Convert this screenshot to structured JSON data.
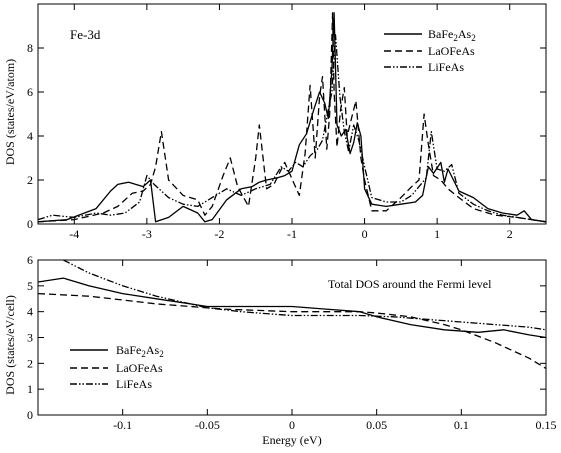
{
  "chart_data": [
    {
      "type": "line",
      "annotation": "Fe-3d",
      "xlabel": "",
      "ylabel": "DOS (states/eV/atom)",
      "xlim": [
        -4.5,
        2.5
      ],
      "ylim": [
        0,
        10
      ],
      "xticks": [
        -4,
        -3,
        -2,
        -1,
        0,
        1,
        2
      ],
      "xtick_labels": [
        "-4",
        "-3",
        "-2",
        "-1",
        "0",
        "1",
        "2"
      ],
      "yticks": [
        0,
        2,
        4,
        6,
        8
      ],
      "ytick_labels": [
        "0",
        "2",
        "4",
        "6",
        "8"
      ],
      "legend": {
        "position": "top-right"
      },
      "grid": false,
      "series": [
        {
          "name": "BaFe2As2",
          "style": "solid",
          "x": [
            -4.5,
            -4.1,
            -3.7,
            -3.5,
            -3.4,
            -3.25,
            -3.05,
            -2.95,
            -2.88,
            -2.7,
            -2.5,
            -2.3,
            -2.2,
            -2.1,
            -1.9,
            -1.7,
            -1.55,
            -1.45,
            -1.35,
            -1.2,
            -1.1,
            -1.0,
            -0.9,
            -0.8,
            -0.7,
            -0.62,
            -0.55,
            -0.5,
            -0.45,
            -0.42,
            -0.38,
            -0.32,
            -0.26,
            -0.2,
            -0.15,
            -0.1,
            -0.05,
            0.0,
            0.1,
            0.3,
            0.5,
            0.7,
            0.8,
            0.88,
            0.95,
            1.05,
            1.1,
            1.15,
            1.3,
            1.5,
            1.7,
            1.9,
            2.1,
            2.2,
            2.3,
            2.5
          ],
          "y": [
            0.1,
            0.2,
            0.7,
            1.5,
            1.8,
            1.9,
            1.7,
            2.0,
            0.1,
            0.3,
            0.8,
            0.5,
            0.1,
            0.2,
            1.1,
            1.6,
            1.7,
            1.9,
            2.0,
            2.1,
            2.2,
            2.4,
            3.6,
            4.1,
            5.2,
            6.0,
            5.5,
            4.8,
            7.0,
            9.6,
            4.5,
            4.0,
            4.3,
            3.2,
            3.7,
            4.6,
            4.0,
            1.6,
            0.9,
            0.8,
            0.9,
            1.0,
            1.3,
            2.6,
            2.3,
            2.8,
            1.9,
            2.5,
            1.5,
            1.2,
            0.7,
            0.5,
            0.4,
            0.6,
            0.2,
            0.1
          ]
        },
        {
          "name": "LaOFeAs",
          "style": "dashed",
          "x": [
            -4.5,
            -4.0,
            -3.6,
            -3.4,
            -3.2,
            -3.05,
            -2.95,
            -2.88,
            -2.8,
            -2.7,
            -2.5,
            -2.3,
            -2.2,
            -2.1,
            -1.95,
            -1.85,
            -1.75,
            -1.6,
            -1.5,
            -1.45,
            -1.35,
            -1.25,
            -1.1,
            -0.9,
            -0.82,
            -0.75,
            -0.68,
            -0.62,
            -0.58,
            -0.52,
            -0.48,
            -0.44,
            -0.42,
            -0.38,
            -0.33,
            -0.28,
            -0.24,
            -0.18,
            -0.12,
            -0.05,
            0.0,
            0.1,
            0.3,
            0.5,
            0.65,
            0.75,
            0.82,
            0.88,
            0.95,
            1.05,
            1.15,
            1.3,
            1.5,
            1.8,
            2.1,
            2.3,
            2.5
          ],
          "y": [
            0.1,
            0.2,
            0.5,
            0.8,
            1.4,
            1.5,
            1.8,
            2.6,
            4.2,
            2.0,
            1.3,
            1.1,
            0.4,
            0.8,
            2.2,
            3.0,
            1.7,
            0.8,
            3.0,
            4.5,
            1.6,
            1.8,
            2.8,
            1.3,
            3.2,
            6.3,
            3.0,
            5.8,
            6.7,
            3.4,
            5.0,
            9.6,
            6.0,
            3.5,
            5.2,
            6.2,
            4.0,
            4.8,
            5.6,
            3.0,
            2.0,
            0.6,
            0.6,
            1.2,
            1.7,
            2.0,
            5.0,
            3.6,
            2.2,
            2.0,
            1.6,
            1.2,
            0.7,
            0.4,
            0.3,
            0.2,
            0.1
          ]
        },
        {
          "name": "LiFeAs",
          "style": "dash-dot-dot",
          "x": [
            -4.5,
            -4.3,
            -4.0,
            -3.7,
            -3.5,
            -3.3,
            -3.1,
            -3.0,
            -2.9,
            -2.7,
            -2.5,
            -2.3,
            -2.1,
            -1.9,
            -1.7,
            -1.5,
            -1.3,
            -1.15,
            -1.05,
            -0.95,
            -0.85,
            -0.75,
            -0.65,
            -0.58,
            -0.5,
            -0.45,
            -0.4,
            -0.34,
            -0.28,
            -0.22,
            -0.15,
            -0.08,
            0.0,
            0.1,
            0.3,
            0.5,
            0.65,
            0.75,
            0.85,
            0.92,
            1.0,
            1.1,
            1.2,
            1.3,
            1.5,
            1.7,
            1.9,
            2.1,
            2.3,
            2.5
          ],
          "y": [
            0.2,
            0.4,
            0.3,
            0.5,
            0.4,
            0.5,
            1.0,
            2.2,
            1.8,
            1.2,
            0.9,
            0.8,
            1.2,
            1.6,
            1.3,
            1.6,
            1.8,
            2.6,
            2.4,
            2.8,
            2.6,
            3.1,
            3.4,
            3.8,
            5.2,
            6.0,
            8.6,
            5.8,
            4.2,
            3.3,
            4.5,
            3.8,
            2.6,
            1.2,
            1.0,
            1.0,
            1.3,
            1.7,
            2.1,
            4.2,
            2.5,
            2.4,
            2.7,
            1.4,
            0.9,
            0.6,
            0.4,
            0.3,
            0.2,
            0.1
          ]
        }
      ]
    },
    {
      "type": "line",
      "annotation": "Total DOS around the Fermi level",
      "xlabel": "Energy (eV)",
      "ylabel": "DOS (states/eV/cell)",
      "xlim": [
        -0.15,
        0.15
      ],
      "ylim": [
        0,
        6
      ],
      "xticks": [
        -0.1,
        -0.05,
        0,
        0.05,
        0.1,
        0.15
      ],
      "xtick_labels": [
        "-0.1",
        "-0.05",
        "0",
        "0.05",
        "0.1",
        "0.15"
      ],
      "yticks": [
        0,
        1,
        2,
        3,
        4,
        5,
        6
      ],
      "ytick_labels": [
        "0",
        "1",
        "2",
        "3",
        "4",
        "5",
        "6"
      ],
      "legend": {
        "position": "left"
      },
      "grid": false,
      "series": [
        {
          "name": "BaFe2As2",
          "style": "solid",
          "x": [
            -0.15,
            -0.135,
            -0.12,
            -0.1,
            -0.08,
            -0.06,
            -0.05,
            -0.04,
            -0.02,
            0.0,
            0.02,
            0.04,
            0.05,
            0.07,
            0.09,
            0.11,
            0.125,
            0.14,
            0.15
          ],
          "y": [
            5.15,
            5.3,
            5.0,
            4.7,
            4.5,
            4.3,
            4.2,
            4.2,
            4.2,
            4.2,
            4.1,
            4.0,
            3.8,
            3.5,
            3.3,
            3.2,
            3.3,
            3.1,
            3.0
          ]
        },
        {
          "name": "LaOFeAs",
          "style": "dashed",
          "x": [
            -0.15,
            -0.12,
            -0.1,
            -0.08,
            -0.06,
            -0.05,
            -0.04,
            -0.02,
            0.0,
            0.02,
            0.04,
            0.05,
            0.07,
            0.09,
            0.1,
            0.12,
            0.14,
            0.15
          ],
          "y": [
            4.7,
            4.6,
            4.45,
            4.3,
            4.2,
            4.15,
            4.1,
            4.05,
            4.0,
            4.0,
            4.0,
            3.95,
            3.8,
            3.5,
            3.3,
            2.8,
            2.2,
            1.8
          ]
        },
        {
          "name": "LiFeAs",
          "style": "dash-dot-dot",
          "x": [
            -0.135,
            -0.12,
            -0.1,
            -0.08,
            -0.06,
            -0.05,
            -0.03,
            -0.01,
            0.0,
            0.02,
            0.04,
            0.06,
            0.08,
            0.1,
            0.12,
            0.14,
            0.15
          ],
          "y": [
            6.0,
            5.5,
            5.0,
            4.6,
            4.3,
            4.15,
            4.0,
            3.9,
            3.85,
            3.85,
            3.85,
            3.8,
            3.7,
            3.6,
            3.5,
            3.4,
            3.3
          ]
        }
      ]
    }
  ],
  "legend_labels": {
    "ba_main": "BaFe",
    "ba_sub1": "2",
    "ba_mid": "As",
    "ba_sub2": "2",
    "la": "LaOFeAs",
    "li": "LiFeAs"
  }
}
